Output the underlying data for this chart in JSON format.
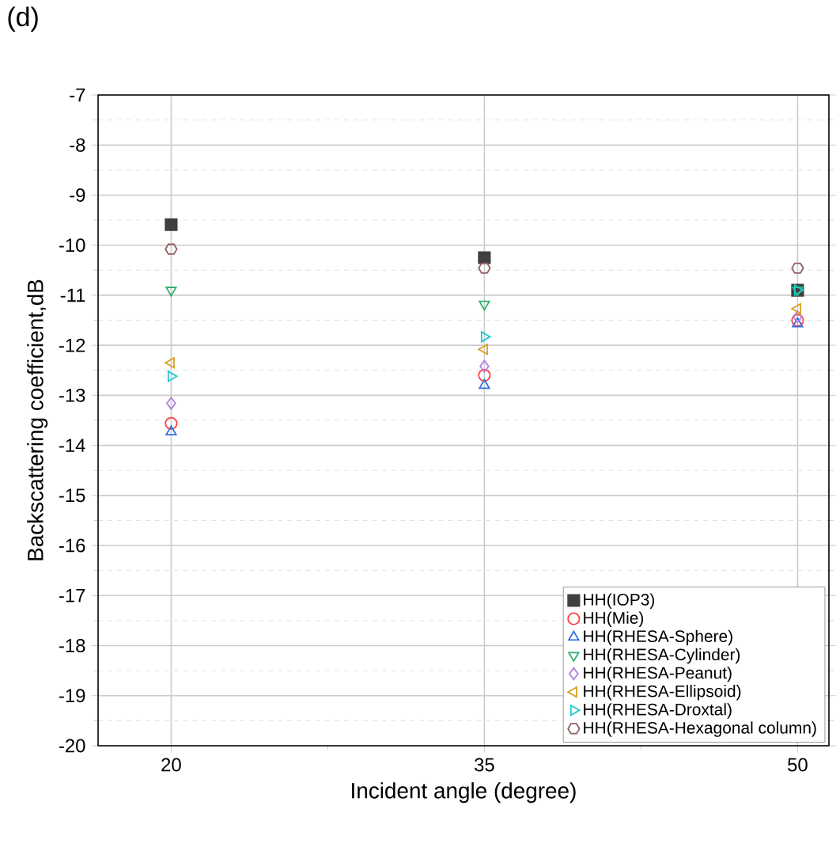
{
  "chart_data": {
    "type": "scatter",
    "title": "(d)",
    "xlabel": "Incident angle (degree)",
    "ylabel": "Backscattering coefficient,dB",
    "x": [
      20,
      35,
      50
    ],
    "xlim": [
      16.5,
      51.5
    ],
    "xticks": [
      20,
      35,
      50
    ],
    "ylim": [
      -20,
      -7
    ],
    "yticks": [
      -20,
      -19,
      -18,
      -17,
      -16,
      -15,
      -14,
      -13,
      -12,
      -11,
      -10,
      -9,
      -8,
      -7
    ],
    "grid": true,
    "legend": "bottom right",
    "series": [
      {
        "name": "HH(IOP3)",
        "color": "#404040",
        "values": [
          -9.59,
          -10.25,
          -10.9
        ]
      },
      {
        "name": "HH(Mie)",
        "color": "#ff4040",
        "values": [
          -13.56,
          -12.6,
          -11.5
        ]
      },
      {
        "name": "HH(RHESA-Sphere)",
        "color": "#3070e0",
        "values": [
          -13.73,
          -12.8,
          -11.57
        ]
      },
      {
        "name": "HH(RHESA-Cylinder)",
        "color": "#30b070",
        "values": [
          -10.9,
          -11.18,
          -10.9
        ]
      },
      {
        "name": "HH(RHESA-Peanut)",
        "color": "#b080e0",
        "values": [
          -13.16,
          -12.42,
          -11.43
        ]
      },
      {
        "name": "HH(RHESA-Ellipsoid)",
        "color": "#d8a020",
        "values": [
          -12.35,
          -12.08,
          -11.27
        ]
      },
      {
        "name": "HH(RHESA-Droxtal)",
        "color": "#20c8d0",
        "values": [
          -12.62,
          -11.83,
          -10.9
        ]
      },
      {
        "name": "HH(RHESA-Hexagonal column)",
        "color": "#906060",
        "values": [
          -10.08,
          -10.46,
          -10.46
        ]
      }
    ]
  }
}
